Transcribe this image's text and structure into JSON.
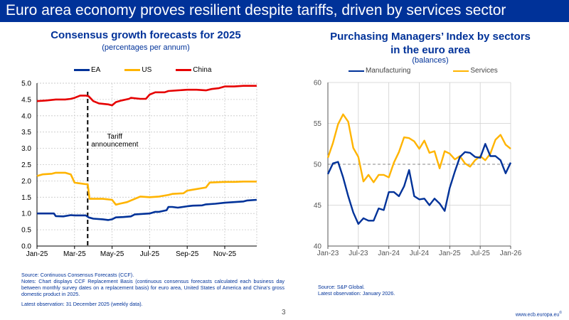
{
  "slide": {
    "title": "Euro area economy proves resilient despite tariffs, driven by services sector",
    "page_number": "3",
    "website": "www.ecb.europa.eu",
    "website_mark": "©"
  },
  "left_panel": {
    "title": "Consensus growth forecasts for 2025",
    "subtitle": "(percentages per annum)",
    "source": "Source: Continuous Consensus Forecasts (CCF).",
    "notes": "Notes: Chart displays CCF Replacement Basis (continuous consensus forecasts calculated each business day between monthly survey dates on a replacement basis) for euro area, United States of America and China’s gross domestic product in 2025.",
    "latest": "Latest observation: 31 December 2025 (weekly data)."
  },
  "right_panel": {
    "title_line1": "Purchasing Managers’ Index by sectors",
    "title_line2": "in the euro area",
    "subtitle": "(balances)",
    "source": "Source: S&P Global.",
    "latest": "Latest observation: January 2026."
  },
  "chart_data": [
    {
      "type": "line",
      "title": "Consensus growth forecasts for 2025",
      "subtitle": "(percentages per annum)",
      "xlabel": "",
      "ylabel": "",
      "x_unit": "months since Jan-25",
      "xlim": [
        0,
        11.8
      ],
      "ylim": [
        0,
        5
      ],
      "yticks": [
        "0.0",
        "0.5",
        "1.0",
        "1.5",
        "2.0",
        "2.5",
        "3.0",
        "3.5",
        "4.0",
        "4.5",
        "5.0"
      ],
      "xticks": [
        {
          "label": "Jan-25",
          "x": 0
        },
        {
          "label": "Mar-25",
          "x": 2
        },
        {
          "label": "May-25",
          "x": 4
        },
        {
          "label": "Jul-25",
          "x": 6
        },
        {
          "label": "Sep-25",
          "x": 8
        },
        {
          "label": "Nov-25",
          "x": 10
        }
      ],
      "grid": true,
      "legend_position": "top-center",
      "annotation": {
        "text_line1": "Tariff",
        "text_line2": "announcement",
        "x": 2.7
      },
      "series": [
        {
          "name": "EA",
          "color": "#003299",
          "x": [
            0,
            0.5,
            0.9,
            1.0,
            1.4,
            1.8,
            2.0,
            2.4,
            2.6,
            2.75,
            3.0,
            3.5,
            3.8,
            4.0,
            4.2,
            4.6,
            5.0,
            5.2,
            5.7,
            6.0,
            6.3,
            6.5,
            6.9,
            7.0,
            7.2,
            7.5,
            8.0,
            8.3,
            8.8,
            9.0,
            9.5,
            10.0,
            10.5,
            11.0,
            11.2,
            11.7
          ],
          "values": [
            1.0,
            1.0,
            1.0,
            0.92,
            0.91,
            0.95,
            0.94,
            0.94,
            0.94,
            0.88,
            0.84,
            0.82,
            0.8,
            0.82,
            0.88,
            0.89,
            0.91,
            0.97,
            0.99,
            1.0,
            1.05,
            1.05,
            1.1,
            1.2,
            1.2,
            1.18,
            1.22,
            1.24,
            1.25,
            1.28,
            1.3,
            1.33,
            1.35,
            1.37,
            1.4,
            1.42
          ]
        },
        {
          "name": "US",
          "color": "#FFB400",
          "x": [
            0,
            0.3,
            0.8,
            1.0,
            1.5,
            1.8,
            2.0,
            2.2,
            2.6,
            2.7,
            2.8,
            3.0,
            3.5,
            4.0,
            4.2,
            4.4,
            4.8,
            5.0,
            5.5,
            6.0,
            6.5,
            7.0,
            7.2,
            7.8,
            8.0,
            8.2,
            9.0,
            9.2,
            10.0,
            10.5,
            11.0,
            11.7
          ],
          "values": [
            2.15,
            2.2,
            2.22,
            2.25,
            2.25,
            2.2,
            1.95,
            1.93,
            1.9,
            1.9,
            1.45,
            1.45,
            1.45,
            1.42,
            1.27,
            1.3,
            1.35,
            1.4,
            1.52,
            1.5,
            1.52,
            1.57,
            1.6,
            1.62,
            1.7,
            1.72,
            1.8,
            1.95,
            1.97,
            1.97,
            1.98,
            1.98
          ]
        },
        {
          "name": "China",
          "color": "#E60000",
          "x": [
            0,
            0.5,
            1.0,
            1.5,
            1.8,
            2.0,
            2.3,
            2.6,
            2.75,
            3.0,
            3.3,
            3.8,
            4.0,
            4.2,
            4.5,
            4.9,
            5.0,
            5.5,
            5.8,
            6.0,
            6.3,
            6.8,
            7.0,
            7.5,
            8.0,
            8.5,
            9.0,
            9.3,
            9.7,
            10.0,
            10.5,
            11.0,
            11.7
          ],
          "values": [
            4.45,
            4.47,
            4.5,
            4.5,
            4.52,
            4.55,
            4.62,
            4.62,
            4.6,
            4.45,
            4.38,
            4.35,
            4.32,
            4.42,
            4.47,
            4.52,
            4.55,
            4.52,
            4.52,
            4.65,
            4.72,
            4.72,
            4.76,
            4.78,
            4.8,
            4.8,
            4.78,
            4.82,
            4.85,
            4.9,
            4.9,
            4.92,
            4.92
          ]
        }
      ]
    },
    {
      "type": "line",
      "title": "Purchasing Managers’ Index by sectors in the euro area",
      "subtitle": "(balances)",
      "xlabel": "",
      "ylabel": "",
      "x_start": "Jan-23",
      "x_unit": "monthly, Jan-23 to Jan-26",
      "xlim": [
        0,
        36
      ],
      "ylim": [
        40,
        60
      ],
      "yticks": [
        "40",
        "45",
        "50",
        "55",
        "60"
      ],
      "xticks": [
        {
          "label": "Jan-23",
          "x": 0
        },
        {
          "label": "Jul-23",
          "x": 6
        },
        {
          "label": "Jan-24",
          "x": 12
        },
        {
          "label": "Jul-24",
          "x": 18
        },
        {
          "label": "Jan-25",
          "x": 24
        },
        {
          "label": "Jul-25",
          "x": 30
        },
        {
          "label": "Jan-26",
          "x": 36
        }
      ],
      "reference_line": 50,
      "grid": true,
      "legend_position": "top-center",
      "series": [
        {
          "name": "Manufacturing",
          "color": "#003299",
          "values": [
            48.8,
            50.1,
            50.3,
            48.4,
            46.1,
            44.1,
            42.7,
            43.4,
            43.1,
            43.1,
            44.6,
            44.4,
            46.6,
            46.6,
            46.1,
            47.3,
            49.3,
            46.1,
            45.7,
            45.8,
            45.0,
            45.8,
            45.2,
            44.3,
            47.1,
            49.1,
            50.9,
            51.5,
            51.4,
            50.9,
            50.8,
            52.5,
            51.0,
            51.0,
            50.5,
            48.9,
            50.2
          ]
        },
        {
          "name": "Services",
          "color": "#FFB400",
          "values": [
            50.8,
            52.6,
            54.9,
            56.1,
            55.2,
            52.0,
            50.9,
            47.9,
            48.7,
            47.8,
            48.7,
            48.7,
            48.4,
            50.2,
            51.5,
            53.3,
            53.2,
            52.8,
            51.9,
            52.9,
            51.4,
            51.6,
            49.5,
            51.6,
            51.3,
            50.6,
            51.0,
            50.1,
            49.7,
            50.5,
            51.0,
            50.5,
            51.3,
            53.0,
            53.6,
            52.4,
            51.9
          ]
        }
      ]
    }
  ]
}
